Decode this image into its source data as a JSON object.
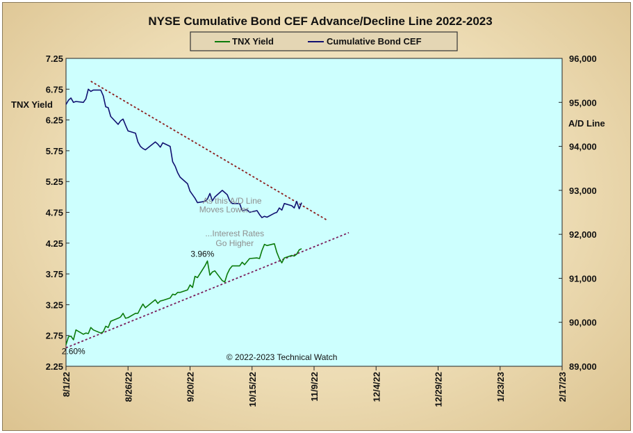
{
  "chart_data": {
    "type": "line",
    "title": "NYSE Cumulative  Bond CEF Advance/Decline  Line 2022-2023",
    "left_axis": {
      "label": "TNX  Yield",
      "ylim": [
        2.25,
        7.25
      ],
      "ticks": [
        2.25,
        2.75,
        3.25,
        3.75,
        4.25,
        4.75,
        5.25,
        5.75,
        6.25,
        6.75,
        7.25
      ],
      "tick_labels": [
        "2.25",
        "2.75",
        "3.25",
        "3.75",
        "4.25",
        "4.75",
        "5.25",
        "5.75",
        "6.25",
        "6.75",
        "7.25"
      ]
    },
    "right_axis": {
      "label": "A/D Line",
      "ylim": [
        89000,
        96000
      ],
      "ticks": [
        89000,
        90000,
        91000,
        92000,
        93000,
        94000,
        95000,
        96000
      ],
      "tick_labels": [
        "89,000",
        "90,000",
        "91,000",
        "92,000",
        "93,000",
        "94,000",
        "95,000",
        "96,000"
      ]
    },
    "x_axis": {
      "xlim": [
        "2022-08-01",
        "2023-02-17"
      ],
      "ticks": [
        "2022-08-01",
        "2022-08-26",
        "2022-09-20",
        "2022-10-15",
        "2022-11-09",
        "2022-12-04",
        "2022-12-29",
        "2023-01-23",
        "2023-02-17"
      ],
      "tick_labels": [
        "8/1/22",
        "8/26/22",
        "9/20/22",
        "10/15/22",
        "11/9/22",
        "12/4/22",
        "12/29/22",
        "1/23/23",
        "2/17/23"
      ]
    },
    "legend": {
      "placement": "top-center"
    },
    "series": [
      {
        "name": "TNX Yield",
        "axis": "left",
        "color": "#0a7a0a",
        "points": [
          [
            "2022-08-01",
            2.6
          ],
          [
            "2022-08-02",
            2.73
          ],
          [
            "2022-08-03",
            2.74
          ],
          [
            "2022-08-04",
            2.68
          ],
          [
            "2022-08-05",
            2.84
          ],
          [
            "2022-08-08",
            2.77
          ],
          [
            "2022-08-09",
            2.79
          ],
          [
            "2022-08-10",
            2.78
          ],
          [
            "2022-08-11",
            2.88
          ],
          [
            "2022-08-12",
            2.84
          ],
          [
            "2022-08-15",
            2.79
          ],
          [
            "2022-08-16",
            2.81
          ],
          [
            "2022-08-17",
            2.9
          ],
          [
            "2022-08-18",
            2.88
          ],
          [
            "2022-08-19",
            2.98
          ],
          [
            "2022-08-22",
            3.03
          ],
          [
            "2022-08-23",
            3.05
          ],
          [
            "2022-08-24",
            3.11
          ],
          [
            "2022-08-25",
            3.03
          ],
          [
            "2022-08-26",
            3.04
          ],
          [
            "2022-08-29",
            3.11
          ],
          [
            "2022-08-30",
            3.11
          ],
          [
            "2022-08-31",
            3.19
          ],
          [
            "2022-09-01",
            3.26
          ],
          [
            "2022-09-02",
            3.2
          ],
          [
            "2022-09-06",
            3.33
          ],
          [
            "2022-09-07",
            3.27
          ],
          [
            "2022-09-08",
            3.31
          ],
          [
            "2022-09-09",
            3.32
          ],
          [
            "2022-09-12",
            3.36
          ],
          [
            "2022-09-13",
            3.42
          ],
          [
            "2022-09-14",
            3.41
          ],
          [
            "2022-09-15",
            3.45
          ],
          [
            "2022-09-16",
            3.45
          ],
          [
            "2022-09-19",
            3.49
          ],
          [
            "2022-09-20",
            3.57
          ],
          [
            "2022-09-21",
            3.53
          ],
          [
            "2022-09-22",
            3.71
          ],
          [
            "2022-09-23",
            3.69
          ],
          [
            "2022-09-26",
            3.88
          ],
          [
            "2022-09-27",
            3.96
          ],
          [
            "2022-09-28",
            3.73
          ],
          [
            "2022-09-29",
            3.78
          ],
          [
            "2022-09-30",
            3.8
          ],
          [
            "2022-10-03",
            3.64
          ],
          [
            "2022-10-04",
            3.62
          ],
          [
            "2022-10-05",
            3.75
          ],
          [
            "2022-10-06",
            3.83
          ],
          [
            "2022-10-07",
            3.88
          ],
          [
            "2022-10-10",
            3.88
          ],
          [
            "2022-10-11",
            3.94
          ],
          [
            "2022-10-12",
            3.9
          ],
          [
            "2022-10-13",
            3.95
          ],
          [
            "2022-10-14",
            4.0
          ],
          [
            "2022-10-17",
            4.01
          ],
          [
            "2022-10-18",
            4.0
          ],
          [
            "2022-10-19",
            4.13
          ],
          [
            "2022-10-20",
            4.23
          ],
          [
            "2022-10-21",
            4.21
          ],
          [
            "2022-10-24",
            4.24
          ],
          [
            "2022-10-25",
            4.1
          ],
          [
            "2022-10-26",
            4.0
          ],
          [
            "2022-10-27",
            3.93
          ],
          [
            "2022-10-28",
            4.01
          ],
          [
            "2022-10-31",
            4.05
          ],
          [
            "2022-11-01",
            4.04
          ],
          [
            "2022-11-02",
            4.07
          ],
          [
            "2022-11-03",
            4.14
          ],
          [
            "2022-11-04",
            4.16
          ]
        ]
      },
      {
        "name": "Cumulative Bond CEF",
        "axis": "right",
        "color": "#101070",
        "points": [
          [
            "2022-08-01",
            94950
          ],
          [
            "2022-08-02",
            95050
          ],
          [
            "2022-08-03",
            95100
          ],
          [
            "2022-08-04",
            95000
          ],
          [
            "2022-08-05",
            95020
          ],
          [
            "2022-08-08",
            95000
          ],
          [
            "2022-08-09",
            95080
          ],
          [
            "2022-08-10",
            95300
          ],
          [
            "2022-08-11",
            95250
          ],
          [
            "2022-08-12",
            95280
          ],
          [
            "2022-08-15",
            95280
          ],
          [
            "2022-08-16",
            95150
          ],
          [
            "2022-08-17",
            94900
          ],
          [
            "2022-08-18",
            94880
          ],
          [
            "2022-08-19",
            94680
          ],
          [
            "2022-08-22",
            94500
          ],
          [
            "2022-08-23",
            94580
          ],
          [
            "2022-08-24",
            94620
          ],
          [
            "2022-08-25",
            94480
          ],
          [
            "2022-08-26",
            94350
          ],
          [
            "2022-08-29",
            94300
          ],
          [
            "2022-08-30",
            94100
          ],
          [
            "2022-08-31",
            94000
          ],
          [
            "2022-09-01",
            93950
          ],
          [
            "2022-09-02",
            93920
          ],
          [
            "2022-09-06",
            94100
          ],
          [
            "2022-09-07",
            94050
          ],
          [
            "2022-09-08",
            93980
          ],
          [
            "2022-09-09",
            94080
          ],
          [
            "2022-09-12",
            94000
          ],
          [
            "2022-09-13",
            93650
          ],
          [
            "2022-09-14",
            93550
          ],
          [
            "2022-09-15",
            93400
          ],
          [
            "2022-09-16",
            93300
          ],
          [
            "2022-09-19",
            93150
          ],
          [
            "2022-09-20",
            92980
          ],
          [
            "2022-09-21",
            92900
          ],
          [
            "2022-09-22",
            92820
          ],
          [
            "2022-09-23",
            92720
          ],
          [
            "2022-09-26",
            92750
          ],
          [
            "2022-09-27",
            92800
          ],
          [
            "2022-09-28",
            92930
          ],
          [
            "2022-09-29",
            92760
          ],
          [
            "2022-09-30",
            92850
          ],
          [
            "2022-10-03",
            93000
          ],
          [
            "2022-10-04",
            92950
          ],
          [
            "2022-10-05",
            92900
          ],
          [
            "2022-10-06",
            92760
          ],
          [
            "2022-10-07",
            92700
          ],
          [
            "2022-10-10",
            92700
          ],
          [
            "2022-10-11",
            92540
          ],
          [
            "2022-10-12",
            92550
          ],
          [
            "2022-10-13",
            92560
          ],
          [
            "2022-10-14",
            92500
          ],
          [
            "2022-10-17",
            92540
          ],
          [
            "2022-10-18",
            92450
          ],
          [
            "2022-10-19",
            92380
          ],
          [
            "2022-10-20",
            92410
          ],
          [
            "2022-10-21",
            92390
          ],
          [
            "2022-10-24",
            92480
          ],
          [
            "2022-10-25",
            92500
          ],
          [
            "2022-10-26",
            92600
          ],
          [
            "2022-10-27",
            92550
          ],
          [
            "2022-10-28",
            92700
          ],
          [
            "2022-10-31",
            92650
          ],
          [
            "2022-11-01",
            92600
          ],
          [
            "2022-11-02",
            92750
          ],
          [
            "2022-11-03",
            92580
          ],
          [
            "2022-11-04",
            92720
          ]
        ]
      }
    ],
    "trendlines": [
      {
        "axis": "right",
        "color": "#8b1a1a",
        "dashed": true,
        "from": [
          "2022-08-11",
          95480
        ],
        "to": [
          "2022-11-14",
          92330
        ]
      },
      {
        "axis": "left",
        "color": "#7a1a5a",
        "dashed": true,
        "from": [
          "2022-08-01",
          2.55
        ],
        "to": [
          "2022-11-23",
          4.42
        ]
      }
    ],
    "annotations": [
      {
        "text": "As this A/D Line",
        "x": "2022-10-07",
        "axis": "right",
        "y": 92700
      },
      {
        "text": "Moves  Lower...",
        "x": "2022-10-05",
        "axis": "right",
        "y": 92500
      },
      {
        "text": "...Interest Rates",
        "x": "2022-10-08",
        "axis": "left",
        "y": 4.36
      },
      {
        "text": "Go Higher",
        "x": "2022-10-08",
        "axis": "left",
        "y": 4.2
      },
      {
        "text": "3.96%",
        "x": "2022-09-25",
        "axis": "left",
        "y": 4.03,
        "dark": true
      },
      {
        "text": "2.60%",
        "x": "2022-08-04",
        "axis": "left",
        "y": 2.45,
        "dark": true
      },
      {
        "text": "© 2022-2023  Technical  Watch",
        "x": "2022-10-27",
        "axis": "left",
        "y": 2.35,
        "dark": true
      }
    ]
  }
}
